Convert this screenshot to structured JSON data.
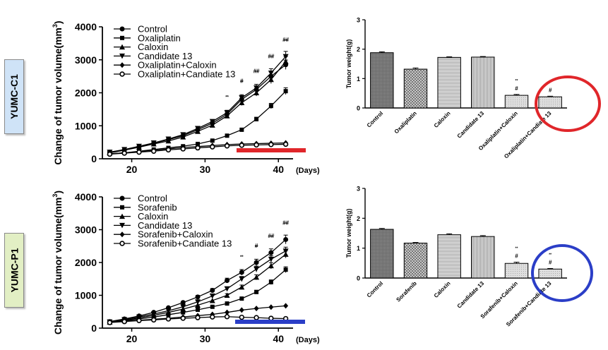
{
  "panel_labels": {
    "top": "YUMC-C1",
    "bottom": "YUMC-P1"
  },
  "colors": {
    "circle_top": "#e0262a",
    "bar_top": "#e0262a",
    "circle_bottom": "#2b3ec7",
    "bar_bottom": "#2b3ec7"
  },
  "chart_data": [
    {
      "id": "c1-line",
      "type": "line",
      "title": "",
      "ylabel": "Change of tumor volume(mm3)",
      "xlabel": "(Days)",
      "ylim": [
        0,
        4000
      ],
      "xlim": [
        16,
        42
      ],
      "xticks": [
        20,
        30,
        40
      ],
      "yticks": [
        0,
        1000,
        2000,
        3000,
        4000
      ],
      "legend_position": "top-left",
      "x": [
        17,
        19,
        21,
        23,
        25,
        27,
        29,
        31,
        33,
        35,
        37,
        39,
        41
      ],
      "series": [
        {
          "name": "Control",
          "marker": "circle",
          "values": [
            200,
            270,
            370,
            470,
            580,
            700,
            880,
            1080,
            1350,
            1800,
            2100,
            2500,
            2850
          ]
        },
        {
          "name": "Oxaliplatin",
          "marker": "square",
          "values": [
            150,
            180,
            230,
            280,
            330,
            380,
            450,
            550,
            700,
            880,
            1200,
            1600,
            2050
          ]
        },
        {
          "name": "Caloxin",
          "marker": "triangle-up",
          "values": [
            180,
            260,
            350,
            450,
            540,
            660,
            830,
            1020,
            1300,
            1700,
            2000,
            2400,
            2950
          ]
        },
        {
          "name": "Candidate 13",
          "marker": "triangle-down",
          "values": [
            200,
            280,
            380,
            480,
            600,
            730,
            920,
            1130,
            1400,
            1850,
            2150,
            2600,
            3100
          ]
        },
        {
          "name": "Oxaliplatin+Caloxin",
          "marker": "diamond",
          "values": [
            150,
            180,
            220,
            260,
            300,
            340,
            370,
            400,
            430,
            450,
            460,
            470,
            480
          ]
        },
        {
          "name": "Oxaliplatin+Candiate 13",
          "marker": "circle-open",
          "values": [
            140,
            170,
            200,
            230,
            270,
            300,
            330,
            360,
            390,
            410,
            420,
            430,
            440
          ]
        }
      ],
      "annotations": [
        {
          "x": 33,
          "text": "**"
        },
        {
          "x": 35,
          "text": "**"
        },
        {
          "x": 35,
          "text": "#"
        },
        {
          "x": 37,
          "text": "**"
        },
        {
          "x": 37,
          "text": "##"
        },
        {
          "x": 39,
          "text": "**"
        },
        {
          "x": 39,
          "text": "##"
        },
        {
          "x": 41,
          "text": "**"
        },
        {
          "x": 41,
          "text": "##"
        }
      ]
    },
    {
      "id": "c1-bar",
      "type": "bar",
      "title": "",
      "ylabel": "Tumor weight(g)",
      "ylim": [
        0,
        3
      ],
      "yticks": [
        0,
        1,
        2,
        3
      ],
      "categories": [
        "Control",
        "Oxaliplatin",
        "Caloxin",
        "Candidate 13",
        "Oxaliplatin+Caloxin",
        "Oxaliplatin+Candiate 13"
      ],
      "values": [
        1.88,
        1.32,
        1.72,
        1.73,
        0.43,
        0.38
      ],
      "errors": [
        0.03,
        0.04,
        0.02,
        0.02,
        0.03,
        0.02
      ],
      "annotations": [
        {
          "category": "Oxaliplatin+Caloxin",
          "text": "**"
        },
        {
          "category": "Oxaliplatin+Caloxin",
          "text": "#"
        },
        {
          "category": "Oxaliplatin+Candiate 13",
          "text": "**"
        },
        {
          "category": "Oxaliplatin+Candiate 13",
          "text": "#"
        }
      ]
    },
    {
      "id": "p1-line",
      "type": "line",
      "title": "",
      "ylabel": "Change of tumor volume(mm3)",
      "xlabel": "(Days)",
      "ylim": [
        0,
        4000
      ],
      "xlim": [
        16,
        42
      ],
      "xticks": [
        20,
        30,
        40
      ],
      "yticks": [
        0,
        1000,
        2000,
        3000,
        4000
      ],
      "legend_position": "top-left",
      "x": [
        17,
        19,
        21,
        23,
        25,
        27,
        29,
        31,
        33,
        35,
        37,
        39,
        41
      ],
      "series": [
        {
          "name": "Control",
          "marker": "circle",
          "values": [
            200,
            280,
            370,
            480,
            620,
            780,
            950,
            1150,
            1450,
            1700,
            2000,
            2300,
            2700
          ]
        },
        {
          "name": "Sorafenib",
          "marker": "square",
          "values": [
            180,
            220,
            280,
            340,
            410,
            480,
            560,
            650,
            750,
            900,
            1100,
            1400,
            1780
          ]
        },
        {
          "name": "Caloxin",
          "marker": "triangle-up",
          "values": [
            180,
            240,
            310,
            390,
            480,
            580,
            700,
            840,
            1000,
            1250,
            1550,
            1900,
            2250
          ]
        },
        {
          "name": "Candidate 13",
          "marker": "triangle-down",
          "values": [
            190,
            260,
            340,
            430,
            530,
            650,
            800,
            980,
            1200,
            1500,
            1800,
            2100,
            2350
          ]
        },
        {
          "name": "Sorafenib+Caloxin",
          "marker": "diamond",
          "values": [
            180,
            210,
            240,
            270,
            300,
            340,
            380,
            420,
            480,
            550,
            600,
            640,
            680
          ]
        },
        {
          "name": "Sorafenib+Candiate 13",
          "marker": "circle-open",
          "values": [
            170,
            200,
            230,
            250,
            280,
            300,
            320,
            340,
            350,
            330,
            320,
            300,
            290
          ]
        }
      ],
      "annotations": [
        {
          "x": 35,
          "text": "**"
        },
        {
          "x": 37,
          "text": "**"
        },
        {
          "x": 37,
          "text": "#"
        },
        {
          "x": 39,
          "text": "**"
        },
        {
          "x": 39,
          "text": "##"
        },
        {
          "x": 41,
          "text": "**"
        },
        {
          "x": 41,
          "text": "##"
        }
      ]
    },
    {
      "id": "p1-bar",
      "type": "bar",
      "title": "",
      "ylabel": "Tumor weight(g)",
      "ylim": [
        0,
        3
      ],
      "yticks": [
        0,
        1,
        2,
        3
      ],
      "categories": [
        "Control",
        "Sorafenib",
        "Caloxin",
        "Candidate 13",
        "Sorafenib+Caloxin",
        "Sorafenib+Candiate 13"
      ],
      "values": [
        1.63,
        1.17,
        1.45,
        1.39,
        0.49,
        0.3
      ],
      "errors": [
        0.03,
        0.02,
        0.03,
        0.03,
        0.04,
        0.02
      ],
      "annotations": [
        {
          "category": "Sorafenib+Caloxin",
          "text": "**"
        },
        {
          "category": "Sorafenib+Caloxin",
          "text": "#"
        },
        {
          "category": "Sorafenib+Candiate 13",
          "text": "**"
        },
        {
          "category": "Sorafenib+Candiate 13",
          "text": "#"
        }
      ]
    }
  ]
}
